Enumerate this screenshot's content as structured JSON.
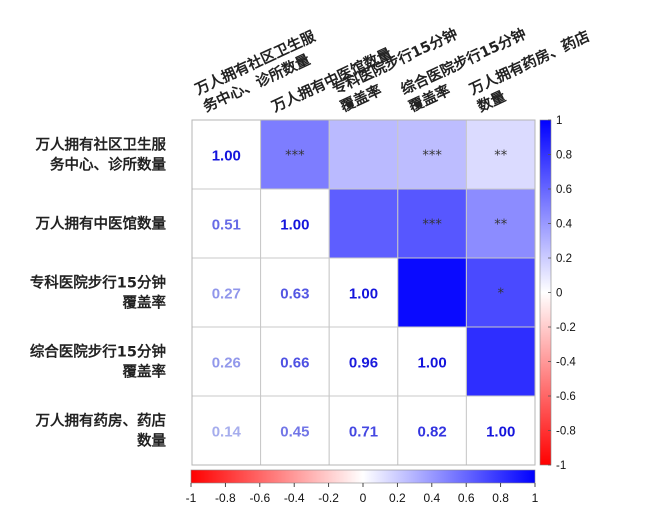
{
  "chart_data": {
    "type": "heatmap",
    "title": "",
    "variables": [
      "万人拥有社区卫生服务中心、诊所数量",
      "万人拥有中医馆数量",
      "专科医院步行15分钟覆盖率",
      "综合医院步行15分钟覆盖率",
      "万人拥有药房、药店数量"
    ],
    "row_labels": [
      [
        "万人拥有社区卫生服",
        "务中心、诊所数量"
      ],
      [
        "万人拥有中医馆数量"
      ],
      [
        "专科医院步行15分钟",
        "覆盖率"
      ],
      [
        "综合医院步行15分钟",
        "覆盖率"
      ],
      [
        "万人拥有药房、药店",
        "数量"
      ]
    ],
    "column_labels": [
      [
        "万人拥有社区卫生服",
        "务中心、诊所数量"
      ],
      [
        "万人拥有中医馆数量"
      ],
      [
        "专科医院步行15分钟",
        "覆盖率"
      ],
      [
        "综合医院步行15分钟",
        "覆盖率"
      ],
      [
        "万人拥有药房、药店",
        "数量"
      ]
    ],
    "matrix": [
      [
        1.0,
        0.51,
        0.27,
        0.26,
        0.14
      ],
      [
        0.51,
        1.0,
        0.63,
        0.66,
        0.45
      ],
      [
        0.27,
        0.63,
        1.0,
        0.96,
        0.71
      ],
      [
        0.26,
        0.66,
        0.96,
        1.0,
        0.82
      ],
      [
        0.14,
        0.45,
        0.71,
        0.82,
        1.0
      ]
    ],
    "significance": [
      [
        "",
        "***",
        "",
        "***",
        "**"
      ],
      [
        "",
        "",
        "",
        "***",
        "**"
      ],
      [
        "",
        "",
        "",
        "",
        "*"
      ],
      [
        "",
        "",
        "",
        "",
        ""
      ],
      [
        "",
        "",
        "",
        "",
        ""
      ]
    ],
    "lower_triangle": "numbers",
    "upper_triangle": "colored-cells",
    "color_scale": {
      "min": -1,
      "max": 1,
      "negative": "#ff0000",
      "zero": "#ffffff",
      "positive": "#0000ff"
    },
    "colorbar_ticks": [
      1,
      0.8,
      0.6,
      0.4,
      0.2,
      0,
      -0.2,
      -0.4,
      -0.6,
      -0.8,
      -1
    ],
    "colorbar_tick_labels": [
      "1",
      "0.8",
      "0.6",
      "0.4",
      "0.2",
      "0",
      "-0.2",
      "-0.4",
      "-0.6",
      "-0.8",
      "-1"
    ],
    "bottom_bar_ticks": [
      -1,
      -0.8,
      -0.6,
      -0.4,
      -0.2,
      0,
      0.2,
      0.4,
      0.6,
      0.8,
      1
    ],
    "bottom_bar_tick_labels": [
      "-1",
      "-0.8",
      "-0.6",
      "-0.4",
      "-0.2",
      "0",
      "0.2",
      "0.4",
      "0.6",
      "0.8",
      "1"
    ]
  }
}
